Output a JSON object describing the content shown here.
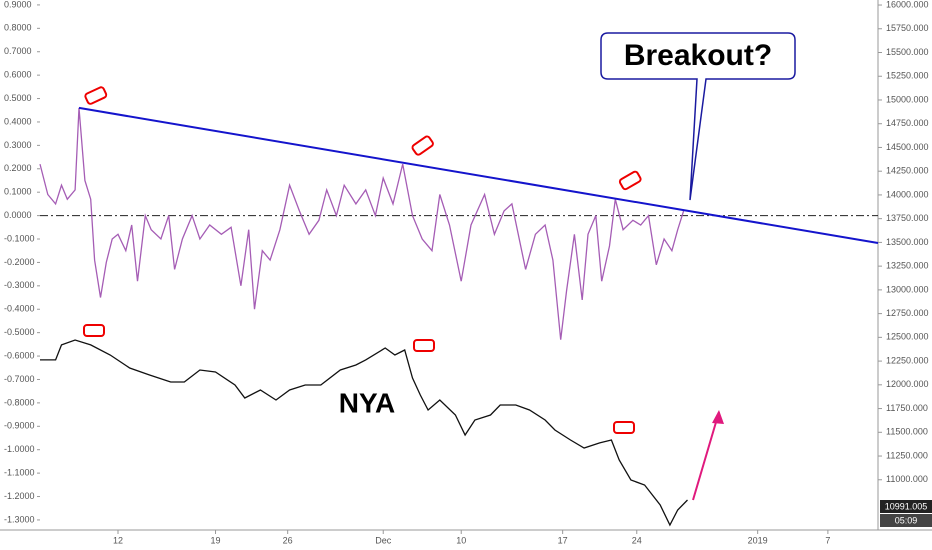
{
  "chart_data": {
    "type": "line",
    "xlim": [
      0,
      42.97
    ],
    "xticks": [
      {
        "value": 4.0,
        "label": "12"
      },
      {
        "value": 9.0,
        "label": "19"
      },
      {
        "value": 12.7,
        "label": "26"
      },
      {
        "value": 17.6,
        "label": "Dec"
      },
      {
        "value": 21.6,
        "label": "10"
      },
      {
        "value": 26.8,
        "label": "17"
      },
      {
        "value": 30.6,
        "label": "24"
      },
      {
        "value": 36.8,
        "label": "2019"
      },
      {
        "value": 40.4,
        "label": "7"
      }
    ],
    "ylim": [
      -1.343,
      0.921
    ],
    "yticks": [
      {
        "value": 0.9,
        "label": "0.9000"
      },
      {
        "value": 0.8,
        "label": "0.8000"
      },
      {
        "value": 0.7,
        "label": "0.7000"
      },
      {
        "value": 0.6,
        "label": "0.6000"
      },
      {
        "value": 0.5,
        "label": "0.5000"
      },
      {
        "value": 0.4,
        "label": "0.4000"
      },
      {
        "value": 0.3,
        "label": "0.3000"
      },
      {
        "value": 0.2,
        "label": "0.2000"
      },
      {
        "value": 0.1,
        "label": "0.1000"
      },
      {
        "value": 0,
        "label": "0.0000"
      },
      {
        "value": -0.1,
        "label": "-0.1000"
      },
      {
        "value": -0.2,
        "label": "-0.2000"
      },
      {
        "value": -0.3,
        "label": "-0.3000"
      },
      {
        "value": -0.4,
        "label": "-0.4000"
      },
      {
        "value": -0.5,
        "label": "-0.5000"
      },
      {
        "value": -0.6,
        "label": "-0.6000"
      },
      {
        "value": -0.7,
        "label": "-0.7000"
      },
      {
        "value": -0.8,
        "label": "-0.8000"
      },
      {
        "value": -0.9,
        "label": "-0.9000"
      },
      {
        "value": -1.0,
        "label": "-1.0000"
      },
      {
        "value": -1.1,
        "label": "-1.1000"
      },
      {
        "value": -1.2,
        "label": "-1.2000"
      },
      {
        "value": -1.3,
        "label": "-1.3000"
      }
    ],
    "y2lim": [
      10471,
      16053
    ],
    "y2ticks": [
      {
        "value": 16000,
        "label": "16000.000"
      },
      {
        "value": 15750,
        "label": "15750.000"
      },
      {
        "value": 15500,
        "label": "15500.000"
      },
      {
        "value": 15250,
        "label": "15250.000"
      },
      {
        "value": 15000,
        "label": "15000.000"
      },
      {
        "value": 14750,
        "label": "14750.000"
      },
      {
        "value": 14500,
        "label": "14500.000"
      },
      {
        "value": 14250,
        "label": "14250.000"
      },
      {
        "value": 14000,
        "label": "14000.000"
      },
      {
        "value": 13750,
        "label": "13750.000"
      },
      {
        "value": 13500,
        "label": "13500.000"
      },
      {
        "value": 13250,
        "label": "13250.000"
      },
      {
        "value": 13000,
        "label": "13000.000"
      },
      {
        "value": 12750,
        "label": "12750.000"
      },
      {
        "value": 12500,
        "label": "12500.000"
      },
      {
        "value": 12250,
        "label": "12250.000"
      },
      {
        "value": 12000,
        "label": "12000.000"
      },
      {
        "value": 11750,
        "label": "11750.000"
      },
      {
        "value": 11500,
        "label": "11500.000"
      },
      {
        "value": 11250,
        "label": "11250.000"
      },
      {
        "value": 11000,
        "label": "11000.000"
      }
    ],
    "series": [
      {
        "color": "#a55db5",
        "axis": "y",
        "x": [
          0,
          0.4,
          0.8,
          1.1,
          1.4,
          1.8,
          2.0,
          2.3,
          2.6,
          2.8,
          3.1,
          3.4,
          3.7,
          4.0,
          4.4,
          4.7,
          5.0,
          5.4,
          5.7,
          6.2,
          6.6,
          6.9,
          7.3,
          7.8,
          8.2,
          8.7,
          9.3,
          9.8,
          10.3,
          10.7,
          11.0,
          11.4,
          11.8,
          12.3,
          12.8,
          13.3,
          13.8,
          14.3,
          14.7,
          15.2,
          15.6,
          16.2,
          16.7,
          17.2,
          17.6,
          18.1,
          18.6,
          19.1,
          19.6,
          20.1,
          20.5,
          21.0,
          21.6,
          22.1,
          22.8,
          23.3,
          23.8,
          24.2,
          24.9,
          25.4,
          25.9,
          26.3,
          26.7,
          27.0,
          27.4,
          27.8,
          28.1,
          28.5,
          28.8,
          29.2,
          29.5,
          29.9,
          30.4,
          30.8,
          31.2,
          31.6,
          32.0,
          32.4,
          32.7,
          33.0
        ],
        "values": [
          0.22,
          0.09,
          0.05,
          0.13,
          0.07,
          0.11,
          0.46,
          0.15,
          0.07,
          -0.19,
          -0.35,
          -0.2,
          -0.1,
          -0.08,
          -0.15,
          -0.04,
          -0.28,
          0.0,
          -0.06,
          -0.1,
          0.0,
          -0.23,
          -0.1,
          0.0,
          -0.1,
          -0.04,
          -0.08,
          -0.05,
          -0.3,
          -0.06,
          -0.4,
          -0.15,
          -0.19,
          -0.06,
          0.13,
          0.02,
          -0.08,
          -0.02,
          0.11,
          0.0,
          0.13,
          0.05,
          0.11,
          0.0,
          0.16,
          0.05,
          0.22,
          0.0,
          -0.1,
          -0.15,
          0.09,
          -0.04,
          -0.28,
          -0.04,
          0.09,
          -0.08,
          0.02,
          0.05,
          -0.23,
          -0.08,
          -0.04,
          -0.19,
          -0.53,
          -0.32,
          -0.08,
          -0.36,
          -0.08,
          0.0,
          -0.28,
          -0.13,
          0.07,
          -0.06,
          -0.02,
          -0.04,
          0.0,
          -0.21,
          -0.1,
          -0.15,
          -0.06,
          0.02
        ]
      },
      {
        "color": "#111111",
        "axis": "y2",
        "x": [
          0,
          0.8,
          1.1,
          1.8,
          2.6,
          3.6,
          4.6,
          5.6,
          6.7,
          7.4,
          8.2,
          9.0,
          10.0,
          10.5,
          11.3,
          12.1,
          12.8,
          13.6,
          14.4,
          15.4,
          16.2,
          16.7,
          17.7,
          18.2,
          18.7,
          19.1,
          19.5,
          19.9,
          20.5,
          21.3,
          21.8,
          22.3,
          23.1,
          23.6,
          24.4,
          25.1,
          25.9,
          26.4,
          27.2,
          27.9,
          28.7,
          29.3,
          29.7,
          30.3,
          31.0,
          31.8,
          32.3,
          32.7,
          33.2
        ],
        "values": [
          12262,
          12262,
          12420,
          12472,
          12420,
          12314,
          12177,
          12104,
          12030,
          12030,
          12156,
          12135,
          11998,
          11861,
          11946,
          11840,
          11946,
          11998,
          11998,
          12156,
          12209,
          12262,
          12388,
          12314,
          12367,
          12072,
          11893,
          11735,
          11840,
          11682,
          11472,
          11630,
          11682,
          11788,
          11788,
          11735,
          11630,
          11524,
          11419,
          11335,
          11388,
          11419,
          11208,
          10998,
          10945,
          10734,
          10524,
          10682,
          10787
        ]
      }
    ],
    "trendline": {
      "color": "#1414cc",
      "x": [
        2.0,
        42.97
      ],
      "values": [
        0.46,
        -0.117
      ]
    },
    "zero_line": 0,
    "annotations": [
      {
        "text": "Breakout?"
      },
      {
        "text": "NYA"
      }
    ],
    "last_price_label": "10991.005",
    "countdown_label": "05:09"
  }
}
